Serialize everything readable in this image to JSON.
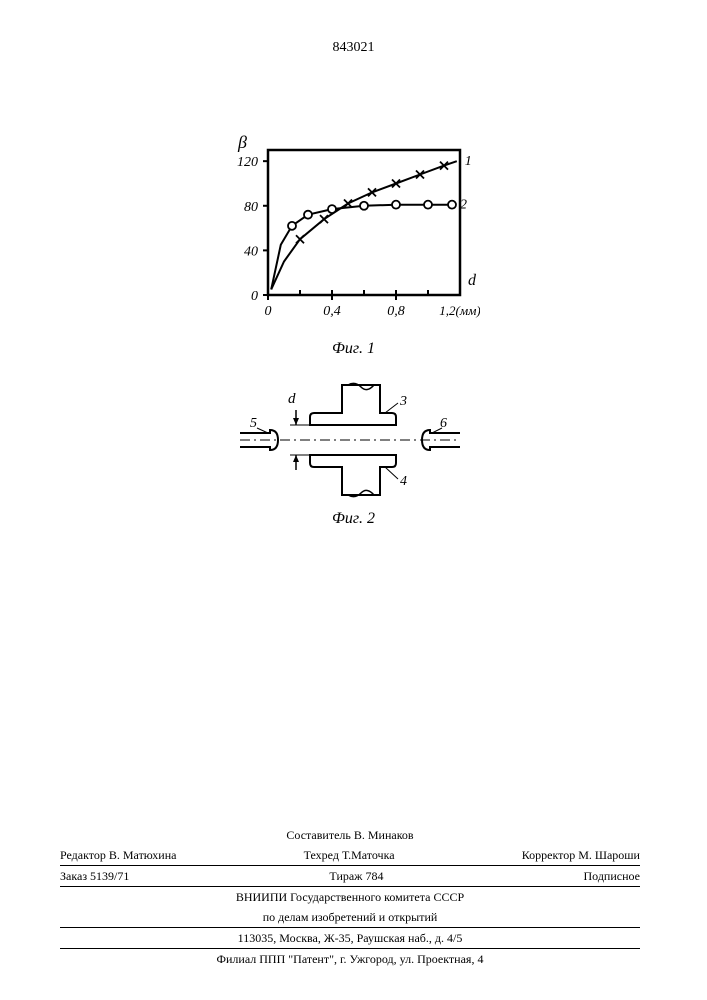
{
  "doc_number": "843021",
  "chart": {
    "type": "line",
    "ylabel": "β",
    "ylabel_fontsize": 16,
    "xlabel_right": "d",
    "x_unit_label": "1,2(мм)",
    "xlim": [
      0,
      1.2
    ],
    "ylim": [
      0,
      130
    ],
    "xtick_labels": [
      "0",
      "0,4",
      "0,8"
    ],
    "xtick_positions": [
      0,
      0.4,
      0.8
    ],
    "ytick_labels": [
      "0",
      "40",
      "80",
      "120"
    ],
    "ytick_positions": [
      0,
      40,
      80,
      120
    ],
    "series1": {
      "label": "1",
      "marker": "x",
      "color": "#000000",
      "points": [
        [
          0.02,
          5
        ],
        [
          0.1,
          30
        ],
        [
          0.2,
          50
        ],
        [
          0.35,
          68
        ],
        [
          0.5,
          82
        ],
        [
          0.65,
          92
        ],
        [
          0.8,
          100
        ],
        [
          0.95,
          108
        ],
        [
          1.1,
          116
        ],
        [
          1.18,
          120
        ]
      ]
    },
    "series2": {
      "label": "2",
      "marker": "o",
      "color": "#000000",
      "points": [
        [
          0.02,
          5
        ],
        [
          0.08,
          45
        ],
        [
          0.15,
          62
        ],
        [
          0.25,
          72
        ],
        [
          0.4,
          77
        ],
        [
          0.6,
          80
        ],
        [
          0.8,
          81
        ],
        [
          1.0,
          81
        ],
        [
          1.15,
          81
        ]
      ]
    },
    "line_width": 2,
    "frame_width": 2.5,
    "background_color": "#ffffff"
  },
  "fig1_caption": "Фиг. 1",
  "fig2": {
    "type": "diagram",
    "labels": {
      "d": "d",
      "n3": "3",
      "n4": "4",
      "n5": "5",
      "n6": "6"
    },
    "stroke": "#000000",
    "line_width": 2
  },
  "fig2_caption": "Фиг. 2",
  "footer": {
    "composer_line": "Составитель В. Минаков",
    "editor": "Редактор В. Матюхина",
    "tech": "Техред Т.Маточка",
    "corrector": "Корректор М. Шароши",
    "order": "Заказ 5139/71",
    "tirazh": "Тираж 784",
    "subscribe": "Подписное",
    "org1": "ВНИИПИ Государственного комитета СССР",
    "org2": "по делам изобретений и открытий",
    "address": "113035, Москва, Ж-35, Раушская наб., д. 4/5",
    "filial": "Филиал ППП \"Патент\", г. Ужгород, ул. Проектная, 4"
  }
}
